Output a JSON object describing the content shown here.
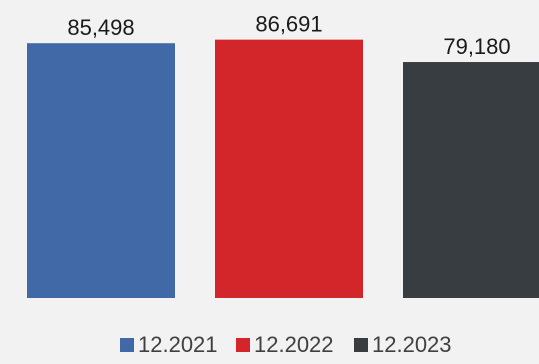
{
  "chart_data": {
    "type": "bar",
    "categories": [
      "12.2021",
      "12.2022",
      "12.2023"
    ],
    "values": [
      85498,
      86691,
      79180
    ],
    "value_labels": [
      "85,498",
      "86,691",
      "79,180"
    ],
    "colors": [
      "#4169a8",
      "#d3262b",
      "#383d42"
    ],
    "title": "",
    "xlabel": "",
    "ylabel": "",
    "ylim": [
      0,
      100000
    ],
    "grid": false,
    "legend": {
      "position": "bottom",
      "entries": [
        "12.2021",
        "12.2022",
        "12.2023"
      ]
    }
  }
}
